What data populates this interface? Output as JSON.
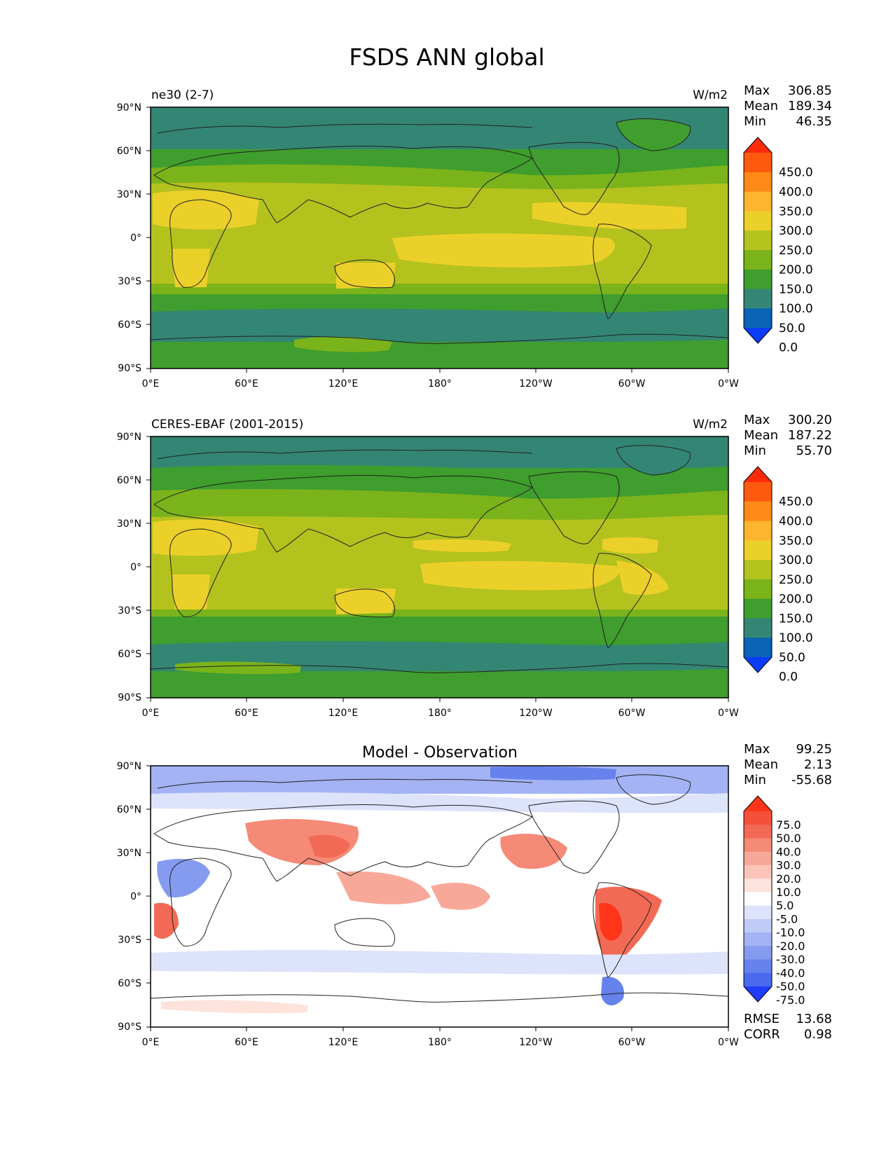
{
  "figure": {
    "title": "FSDS ANN global"
  },
  "axes": {
    "lat_ticks": [
      "90°N",
      "60°N",
      "30°N",
      "0°",
      "30°S",
      "60°S",
      "90°S"
    ],
    "lon_ticks": [
      "0°E",
      "60°E",
      "120°E",
      "180°",
      "120°W",
      "60°W",
      "0°W"
    ]
  },
  "panels": [
    {
      "id": "model",
      "label": "ne30 (2-7)",
      "units": "W/m2",
      "stats": [
        {
          "key": "Max",
          "value": "306.85"
        },
        {
          "key": "Mean",
          "value": "189.34"
        },
        {
          "key": "Min",
          "value": "46.35"
        }
      ],
      "colorbar_labels": [
        "450.0",
        "400.0",
        "350.0",
        "300.0",
        "250.0",
        "200.0",
        "150.0",
        "100.0",
        "50.0",
        "0.0"
      ],
      "colorbar_colors": [
        "#ff2a0a",
        "#fd5a10",
        "#fd8a16",
        "#fdb42e",
        "#ecd02a",
        "#b4c21e",
        "#7bb31b",
        "#3f9e2d",
        "#338673",
        "#0a63b4",
        "#0a3cfa"
      ]
    },
    {
      "id": "obs",
      "label": "CERES-EBAF (2001-2015)",
      "units": "W/m2",
      "stats": [
        {
          "key": "Max",
          "value": "300.20"
        },
        {
          "key": "Mean",
          "value": "187.22"
        },
        {
          "key": "Min",
          "value": "55.70"
        }
      ],
      "colorbar_labels": [
        "450.0",
        "400.0",
        "350.0",
        "300.0",
        "250.0",
        "200.0",
        "150.0",
        "100.0",
        "50.0",
        "0.0"
      ],
      "colorbar_colors": [
        "#ff2a0a",
        "#fd5a10",
        "#fd8a16",
        "#fdb42e",
        "#ecd02a",
        "#b4c21e",
        "#7bb31b",
        "#3f9e2d",
        "#338673",
        "#0a63b4",
        "#0a3cfa"
      ]
    },
    {
      "id": "diff",
      "title": "Model - Observation",
      "stats": [
        {
          "key": "Max",
          "value": "99.25"
        },
        {
          "key": "Mean",
          "value": "2.13"
        },
        {
          "key": "Min",
          "value": "-55.68"
        }
      ],
      "colorbar_labels": [
        "75.0",
        "50.0",
        "40.0",
        "30.0",
        "20.0",
        "10.0",
        "5.0",
        "-5.0",
        "-10.0",
        "-20.0",
        "-30.0",
        "-40.0",
        "-50.0",
        "-75.0"
      ],
      "colorbar_colors": [
        "#fe3518",
        "#f4503a",
        "#f26a55",
        "#f58a77",
        "#f8a898",
        "#fac5b8",
        "#fde3db",
        "#ffffff",
        "#dde3fb",
        "#c0cbf7",
        "#a3b3f4",
        "#859bf0",
        "#6682ed",
        "#4a6aee",
        "#1f3df8"
      ],
      "metrics": [
        {
          "key": "RMSE",
          "value": "13.68"
        },
        {
          "key": "CORR",
          "value": "0.98"
        }
      ]
    }
  ]
}
